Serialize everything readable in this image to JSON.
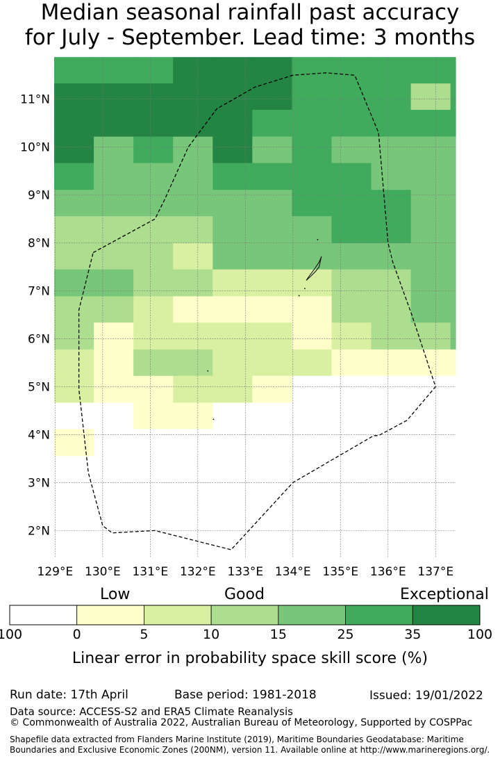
{
  "title": {
    "line1": "Median seasonal rainfall past accuracy",
    "line2": "for July - September. Lead time: 3 months"
  },
  "map": {
    "lon_ticks": [
      "129°E",
      "130°E",
      "131°E",
      "132°E",
      "133°E",
      "134°E",
      "135°E",
      "136°E",
      "137°E"
    ],
    "lat_ticks": [
      "2°N",
      "3°N",
      "4°N",
      "5°N",
      "6°N",
      "7°N",
      "8°N",
      "9°N",
      "10°N",
      "11°N"
    ],
    "lon_range": [
      128.98,
      137.42
    ],
    "lat_range": [
      1.44,
      11.88
    ],
    "cell_size_deg": [
      0.8333,
      0.5556
    ],
    "category_colors": [
      "#ffffff",
      "#ffffcc",
      "#d9f0a3",
      "#addd8e",
      "#78c679",
      "#41ab5d",
      "#238443"
    ],
    "grid_rows": [
      {
        "lat": 11.6,
        "codes": "5556665555555"
      },
      {
        "lat": 11.05,
        "codes": "6666665553556"
      },
      {
        "lat": 10.5,
        "codes": "6666655555555"
      },
      {
        "lat": 9.94,
        "codes": "6454645444444"
      },
      {
        "lat": 9.39,
        "codes": "5444555544444"
      },
      {
        "lat": 8.83,
        "codes": "4444445554444"
      },
      {
        "lat": 8.28,
        "codes": "3333444554443"
      },
      {
        "lat": 7.72,
        "codes": "3332444444443"
      },
      {
        "lat": 7.17,
        "codes": "4433222334442"
      },
      {
        "lat": 6.61,
        "codes": "3321111334443"
      },
      {
        "lat": 6.06,
        "codes": "3122221233432"
      },
      {
        "lat": 5.5,
        "codes": "2133222111133"
      },
      {
        "lat": 4.95,
        "codes": "2112210000010"
      },
      {
        "lat": 4.39,
        "codes": "0011000000000"
      },
      {
        "lat": 3.84,
        "codes": "1000000000000"
      }
    ],
    "boundary": [
      [
        129.8,
        7.8
      ],
      [
        131.1,
        8.5
      ],
      [
        131.3,
        8.9
      ],
      [
        131.8,
        10.0
      ],
      [
        132.4,
        10.8
      ],
      [
        133.2,
        11.25
      ],
      [
        134.0,
        11.5
      ],
      [
        134.7,
        11.55
      ],
      [
        135.3,
        11.5
      ],
      [
        135.8,
        10.3
      ],
      [
        136.0,
        8.0
      ],
      [
        136.1,
        7.6
      ],
      [
        136.5,
        6.5
      ],
      [
        137.0,
        5.0
      ],
      [
        136.4,
        4.3
      ],
      [
        135.8,
        3.98
      ],
      [
        135.7,
        3.98
      ],
      [
        134.0,
        3.0
      ],
      [
        132.7,
        1.6
      ],
      [
        131.1,
        2.0
      ],
      [
        130.2,
        1.95
      ],
      [
        130.0,
        2.1
      ],
      [
        129.7,
        3.2
      ],
      [
        129.5,
        4.95
      ],
      [
        129.5,
        6.6
      ],
      [
        129.8,
        7.8
      ]
    ],
    "islands": [
      {
        "shape": "main",
        "points": [
          [
            134.6,
            7.72
          ],
          [
            134.55,
            7.6
          ],
          [
            134.45,
            7.45
          ],
          [
            134.35,
            7.32
          ],
          [
            134.28,
            7.22
          ],
          [
            134.37,
            7.3
          ],
          [
            134.47,
            7.4
          ],
          [
            134.55,
            7.5
          ],
          [
            134.6,
            7.72
          ]
        ]
      },
      {
        "shape": "dot",
        "lon": 134.52,
        "lat": 8.07
      },
      {
        "shape": "dot",
        "lon": 134.25,
        "lat": 7.05
      },
      {
        "shape": "dot",
        "lon": 134.13,
        "lat": 6.9
      },
      {
        "shape": "dot",
        "lon": 132.21,
        "lat": 5.33
      },
      {
        "shape": "dot",
        "lon": 132.33,
        "lat": 4.32
      }
    ]
  },
  "colorbar": {
    "labels": {
      "low": "Low",
      "good": "Good",
      "exceptional": "Exceptional"
    },
    "bins": [
      "100",
      "0",
      "5",
      "10",
      "15",
      "25",
      "35",
      "100"
    ],
    "axis_label": "Linear error in probability space skill score (%)"
  },
  "footer": {
    "run_date": "Run date: 17th April",
    "base_period": "Base period: 1981-2018",
    "issued": "Issued: 19/01/2022",
    "data_source": "Data source: ACCESS-S2 and ERA5 Climate Reanalysis",
    "copyright": "© Commonwealth of Australia 2022, Australian Bureau of Meteorology, Supported by COSPPac",
    "shapefile_note": "Shapefile data extracted from Flanders Marine Institute (2019), Maritime Boundaries Geodatabase: Maritime Boundaries and Exclusive Economic Zones (200NM), version 11. Available online at http://www.marineregions.org/."
  }
}
